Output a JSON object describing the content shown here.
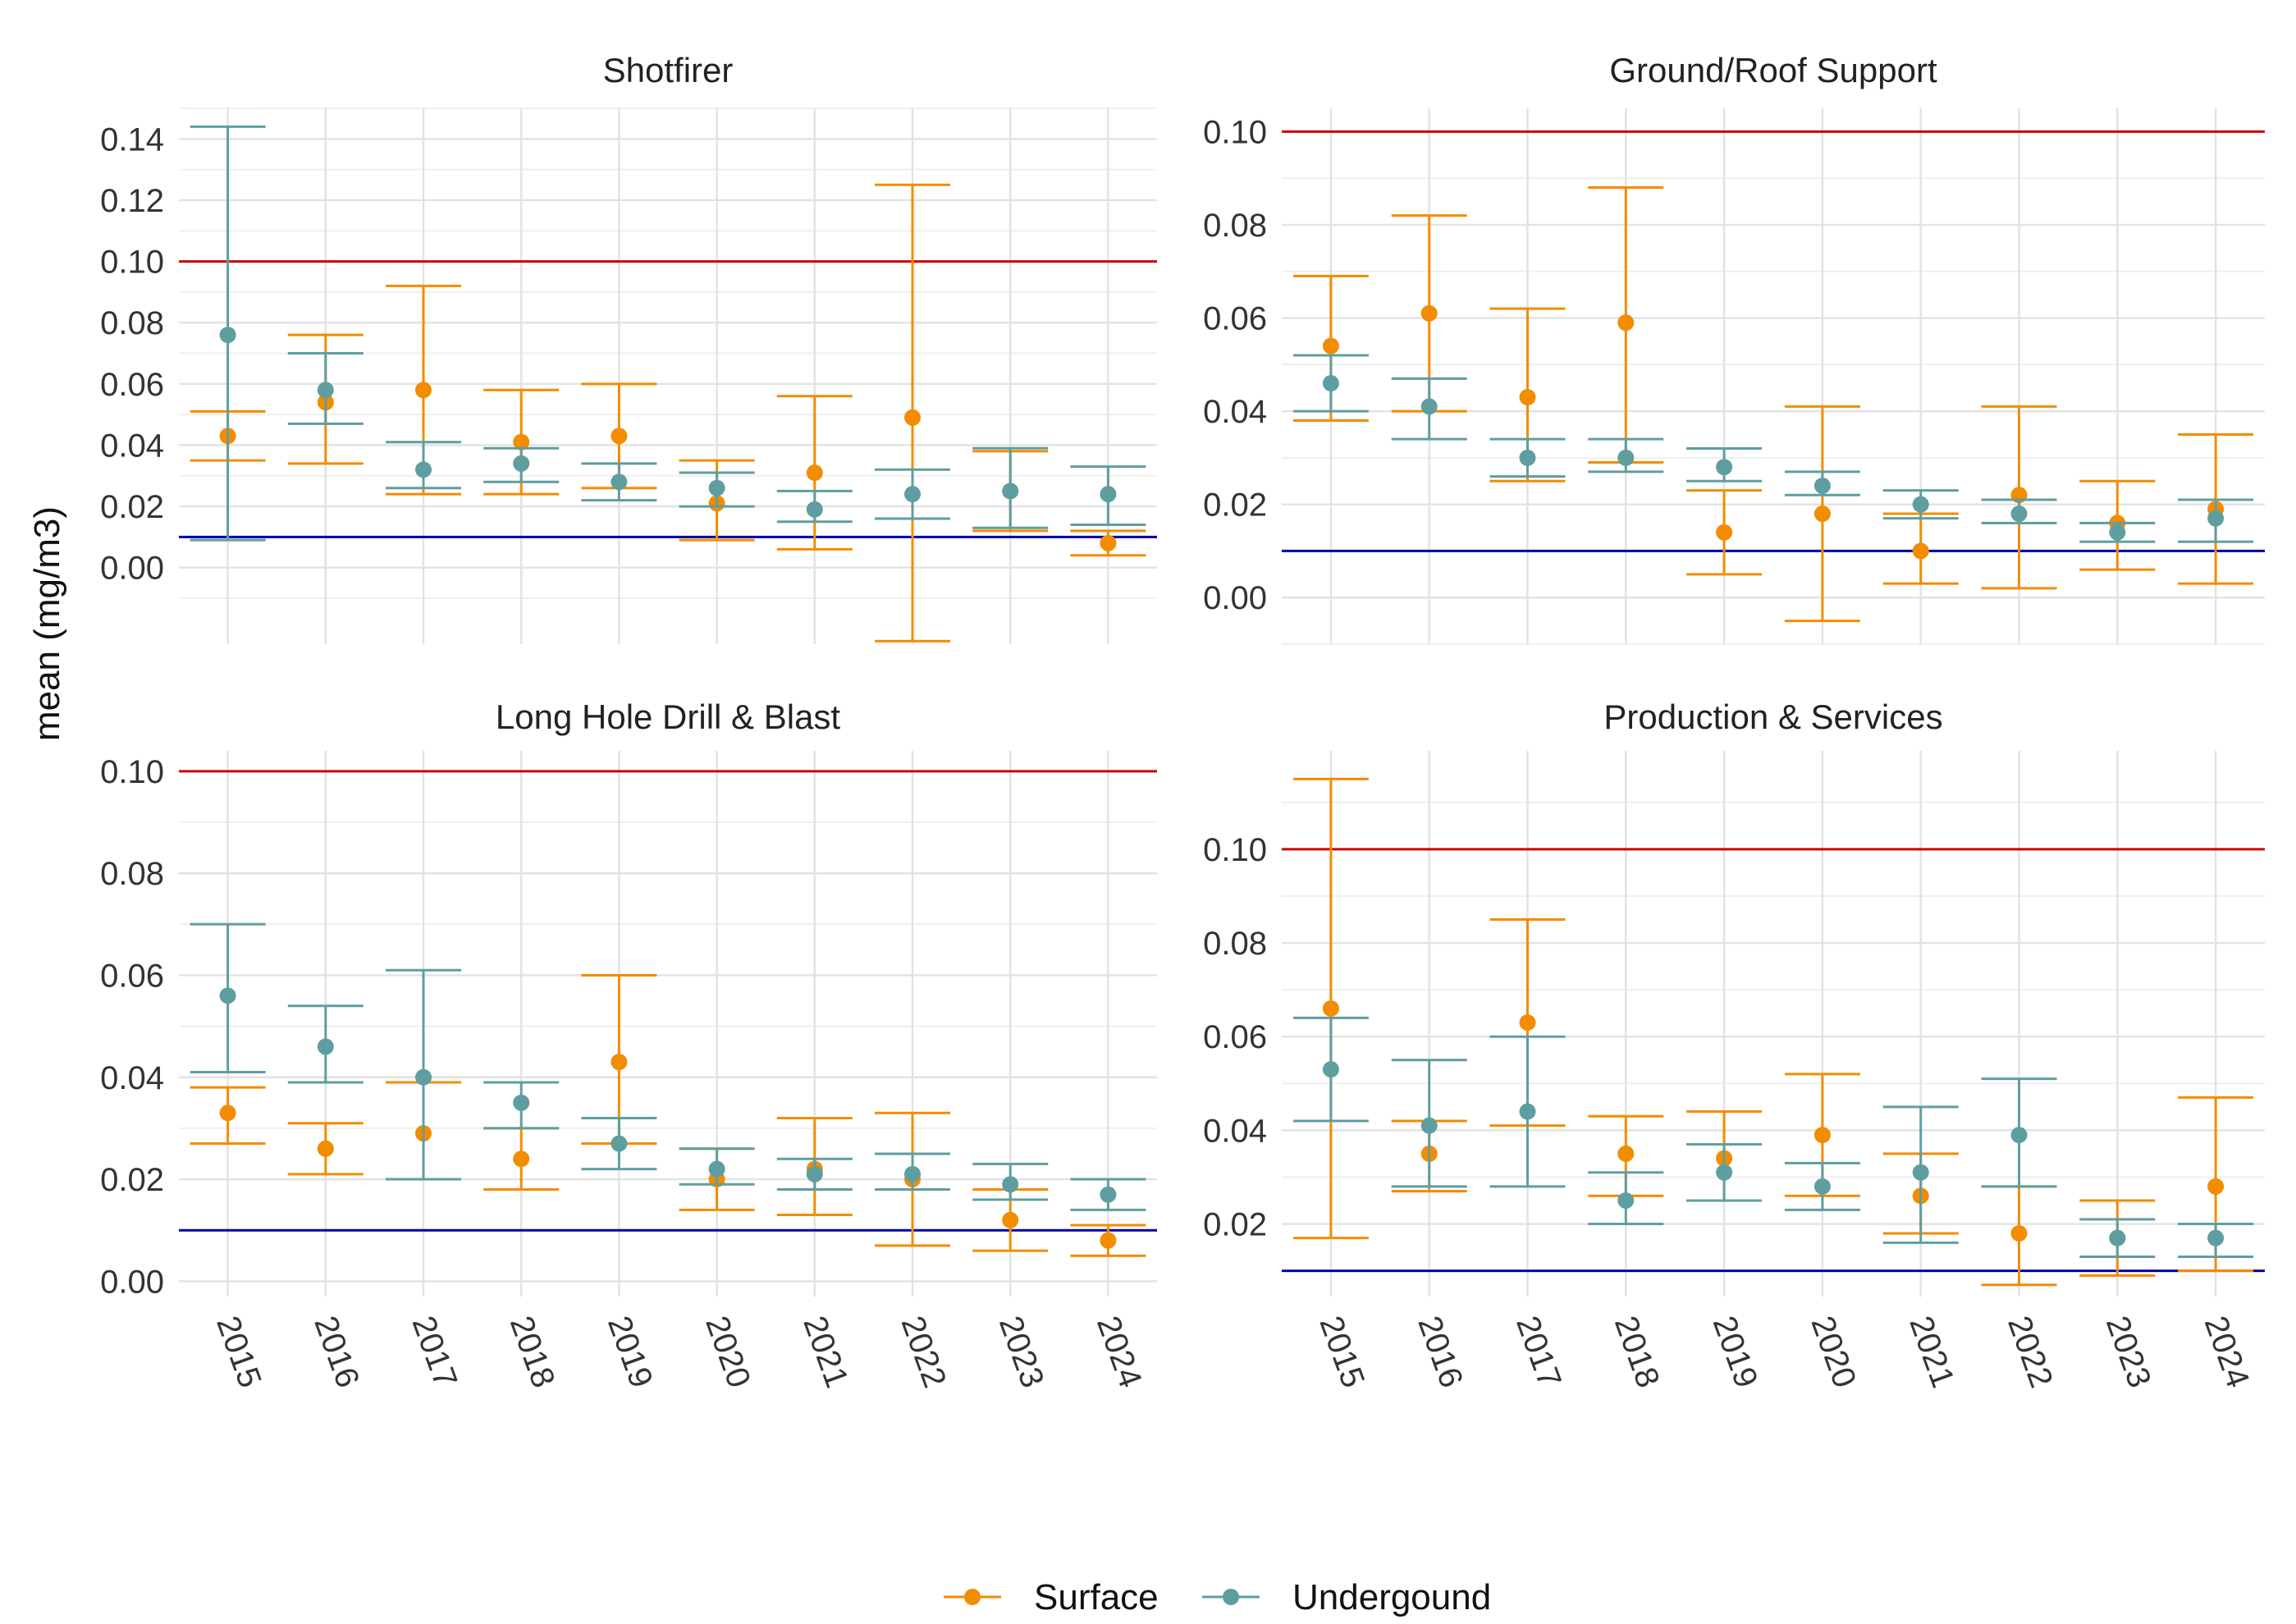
{
  "chart_data": {
    "type": "scatter",
    "ylabel": "mean (mg/m3)",
    "xlabel": "",
    "categories": [
      "2015",
      "2016",
      "2017",
      "2018",
      "2019",
      "2020",
      "2021",
      "2022",
      "2023",
      "2024"
    ],
    "legend": {
      "position": "bottom",
      "entries": [
        {
          "name": "Surface",
          "color": "#F28C00"
        },
        {
          "name": "Undergound",
          "color": "#5F9EA0"
        }
      ]
    },
    "reference_lines": [
      {
        "value": 0.1,
        "color": "#CC0000"
      },
      {
        "value": 0.01,
        "color": "#0000AA"
      }
    ],
    "panels": [
      {
        "title": "Shotfirer",
        "ylim": [
          -0.025,
          0.15
        ],
        "yticks": [
          0.0,
          0.02,
          0.04,
          0.06,
          0.08,
          0.1,
          0.12,
          0.14
        ],
        "ytick_labels": [
          "0.00",
          "0.02",
          "0.04",
          "0.06",
          "0.08",
          "0.10",
          "0.12",
          "0.14"
        ],
        "series": [
          {
            "name": "Surface",
            "mean": [
              0.043,
              0.054,
              0.058,
              0.041,
              0.043,
              0.021,
              0.031,
              0.049,
              0.025,
              0.008
            ],
            "lower": [
              0.035,
              0.034,
              0.024,
              0.024,
              0.026,
              0.009,
              0.006,
              -0.024,
              0.012,
              0.004
            ],
            "upper": [
              0.051,
              0.076,
              0.092,
              0.058,
              0.06,
              0.035,
              0.056,
              0.125,
              0.038,
              0.012
            ]
          },
          {
            "name": "Undergound",
            "mean": [
              0.076,
              0.058,
              0.032,
              0.034,
              0.028,
              0.026,
              0.019,
              0.024,
              0.025,
              0.024
            ],
            "lower": [
              0.009,
              0.047,
              0.026,
              0.028,
              0.022,
              0.02,
              0.015,
              0.016,
              0.013,
              0.014
            ],
            "upper": [
              0.144,
              0.07,
              0.041,
              0.039,
              0.034,
              0.031,
              0.025,
              0.032,
              0.039,
              0.033
            ]
          }
        ]
      },
      {
        "title": "Ground/Roof Support",
        "ylim": [
          -0.01,
          0.105
        ],
        "yticks": [
          0.0,
          0.02,
          0.04,
          0.06,
          0.08,
          0.1
        ],
        "ytick_labels": [
          "0.00",
          "0.02",
          "0.04",
          "0.06",
          "0.08",
          "0.10"
        ],
        "series": [
          {
            "name": "Surface",
            "mean": [
              0.054,
              0.061,
              0.043,
              0.059,
              0.014,
              0.018,
              0.01,
              0.022,
              0.016,
              0.019
            ],
            "lower": [
              0.038,
              0.04,
              0.025,
              0.029,
              0.005,
              -0.005,
              0.003,
              0.002,
              0.006,
              0.003
            ],
            "upper": [
              0.069,
              0.082,
              0.062,
              0.088,
              0.023,
              0.041,
              0.018,
              0.041,
              0.025,
              0.035
            ]
          },
          {
            "name": "Undergound",
            "mean": [
              0.046,
              0.041,
              0.03,
              0.03,
              0.028,
              0.024,
              0.02,
              0.018,
              0.014,
              0.017
            ],
            "lower": [
              0.04,
              0.034,
              0.026,
              0.027,
              0.025,
              0.022,
              0.017,
              0.016,
              0.012,
              0.012
            ],
            "upper": [
              0.052,
              0.047,
              0.034,
              0.034,
              0.032,
              0.027,
              0.023,
              0.021,
              0.016,
              0.021
            ]
          }
        ]
      },
      {
        "title": "Long Hole Drill & Blast",
        "ylim": [
          -0.003,
          0.104
        ],
        "yticks": [
          0.0,
          0.02,
          0.04,
          0.06,
          0.08,
          0.1
        ],
        "ytick_labels": [
          "0.00",
          "0.02",
          "0.04",
          "0.06",
          "0.08",
          "0.10"
        ],
        "series": [
          {
            "name": "Surface",
            "mean": [
              0.033,
              0.026,
              0.029,
              0.024,
              0.043,
              0.02,
              0.022,
              0.02,
              0.012,
              0.008
            ],
            "lower": [
              0.027,
              0.021,
              0.02,
              0.018,
              0.027,
              0.014,
              0.013,
              0.007,
              0.006,
              0.005
            ],
            "upper": [
              0.038,
              0.031,
              0.039,
              0.03,
              0.06,
              0.026,
              0.032,
              0.033,
              0.018,
              0.011
            ]
          },
          {
            "name": "Undergound",
            "mean": [
              0.056,
              0.046,
              0.04,
              0.035,
              0.027,
              0.022,
              0.021,
              0.021,
              0.019,
              0.017
            ],
            "lower": [
              0.041,
              0.039,
              0.02,
              0.03,
              0.022,
              0.019,
              0.018,
              0.018,
              0.016,
              0.014
            ],
            "upper": [
              0.07,
              0.054,
              0.061,
              0.039,
              0.032,
              0.026,
              0.024,
              0.025,
              0.023,
              0.02
            ]
          }
        ]
      },
      {
        "title": "Production & Services",
        "ylim": [
          0.0045,
          0.121
        ],
        "yticks": [
          0.02,
          0.04,
          0.06,
          0.08,
          0.1
        ],
        "ytick_labels": [
          "0.02",
          "0.04",
          "0.06",
          "0.08",
          "0.10"
        ],
        "series": [
          {
            "name": "Surface",
            "mean": [
              0.066,
              0.035,
              0.063,
              0.035,
              0.034,
              0.039,
              0.026,
              0.018,
              0.017,
              0.028
            ],
            "lower": [
              0.017,
              0.027,
              0.041,
              0.026,
              0.025,
              0.026,
              0.018,
              0.007,
              0.009,
              0.01
            ],
            "upper": [
              0.115,
              0.042,
              0.085,
              0.043,
              0.044,
              0.052,
              0.035,
              0.028,
              0.025,
              0.047
            ]
          },
          {
            "name": "Undergound",
            "mean": [
              0.053,
              0.041,
              0.044,
              0.025,
              0.031,
              0.028,
              0.031,
              0.039,
              0.017,
              0.017
            ],
            "lower": [
              0.042,
              0.028,
              0.028,
              0.02,
              0.025,
              0.023,
              0.016,
              0.028,
              0.013,
              0.013
            ],
            "upper": [
              0.064,
              0.055,
              0.06,
              0.031,
              0.037,
              0.033,
              0.045,
              0.051,
              0.021,
              0.02
            ]
          }
        ]
      }
    ]
  }
}
